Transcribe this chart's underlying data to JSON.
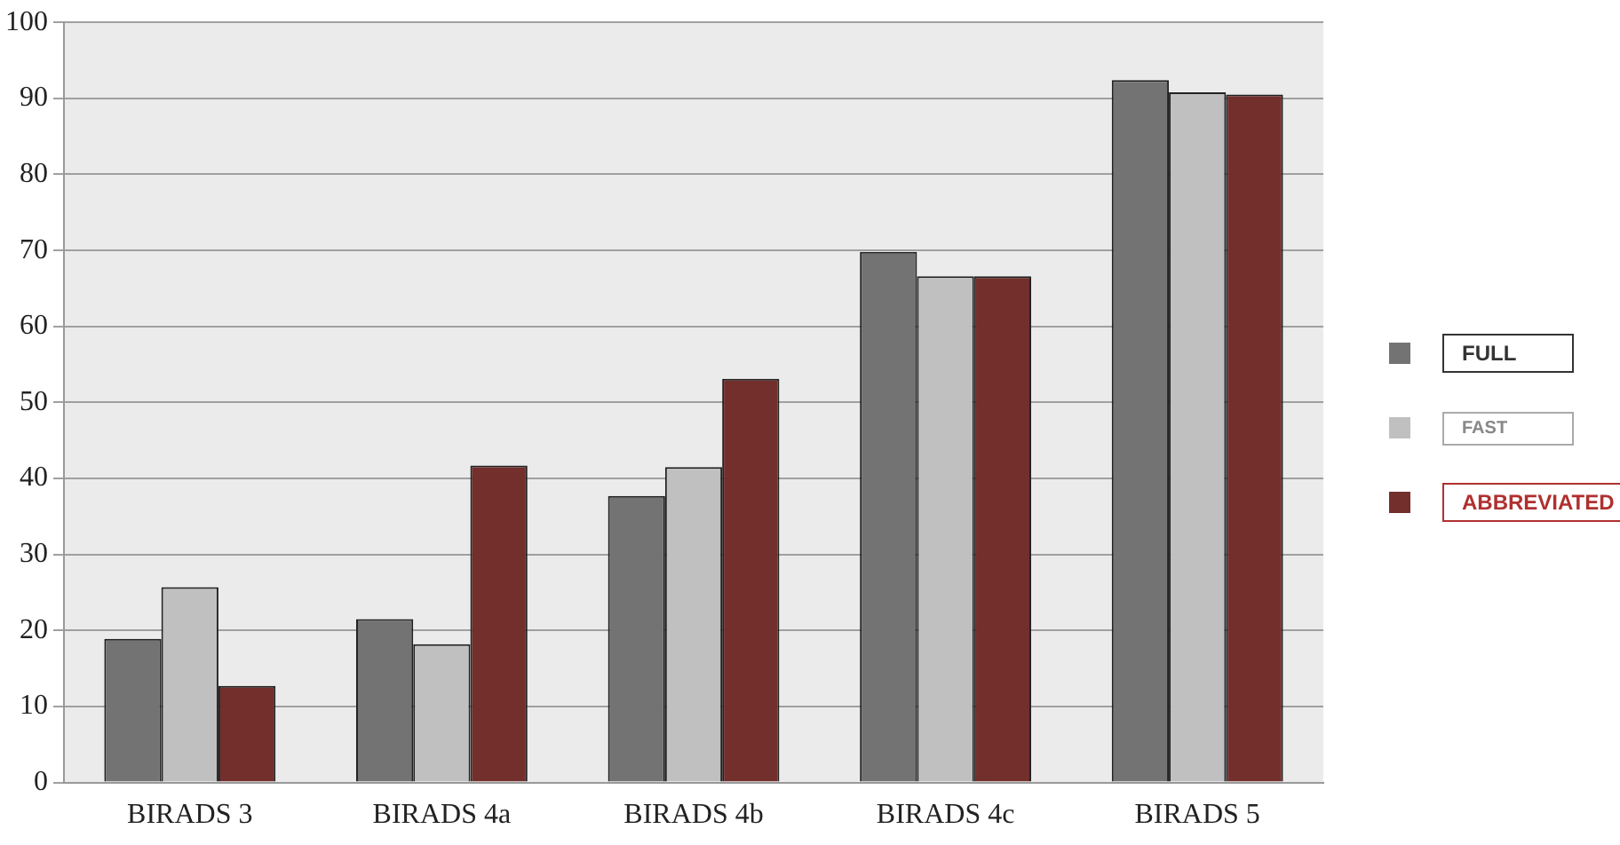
{
  "chart_data": {
    "type": "bar",
    "categories": [
      "BIRADS 3",
      "BIRADS 4a",
      "BIRADS 4b",
      "BIRADS 4c",
      "BIRADS 5"
    ],
    "series": [
      {
        "name": "FULL",
        "color": "#737373",
        "values": [
          18.9,
          21.5,
          37.7,
          69.8,
          92.4
        ]
      },
      {
        "name": "FAST",
        "color": "#c0c0c0",
        "values": [
          25.7,
          18.2,
          41.5,
          66.6,
          90.8
        ]
      },
      {
        "name": "ABBREVIATED",
        "color": "#722f2c",
        "values": [
          12.7,
          41.7,
          53.1,
          66.6,
          90.5
        ]
      }
    ],
    "ylim": [
      0,
      100
    ],
    "yticks": [
      0,
      10,
      20,
      30,
      40,
      50,
      60,
      70,
      80,
      90,
      100
    ],
    "grid": "y",
    "legend": "right"
  }
}
